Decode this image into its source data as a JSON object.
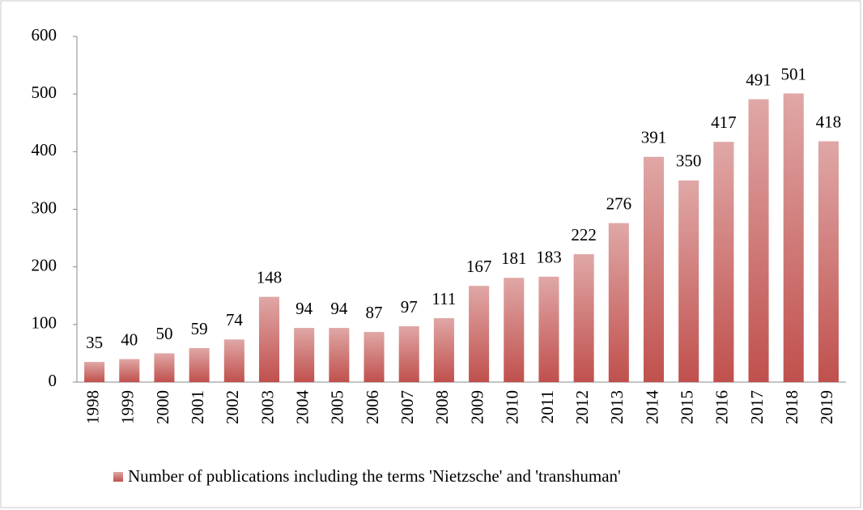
{
  "chart_data": {
    "type": "bar",
    "categories": [
      "1998",
      "1999",
      "2000",
      "2001",
      "2002",
      "2003",
      "2004",
      "2005",
      "2006",
      "2007",
      "2008",
      "2009",
      "2010",
      "2011",
      "2012",
      "2013",
      "2014",
      "2015",
      "2016",
      "2017",
      "2018",
      "2019"
    ],
    "series": [
      {
        "name": "Number of publications including the terms 'Nietzsche' and 'transhuman'",
        "color": "#c0504d",
        "values": [
          35,
          40,
          50,
          59,
          74,
          148,
          94,
          94,
          87,
          97,
          111,
          167,
          181,
          183,
          222,
          276,
          391,
          350,
          417,
          491,
          501,
          418
        ]
      }
    ],
    "ylim": [
      0,
      600
    ],
    "yticks": [
      0,
      100,
      200,
      300,
      400,
      500,
      600
    ],
    "grid": false,
    "legend": "bottom"
  }
}
